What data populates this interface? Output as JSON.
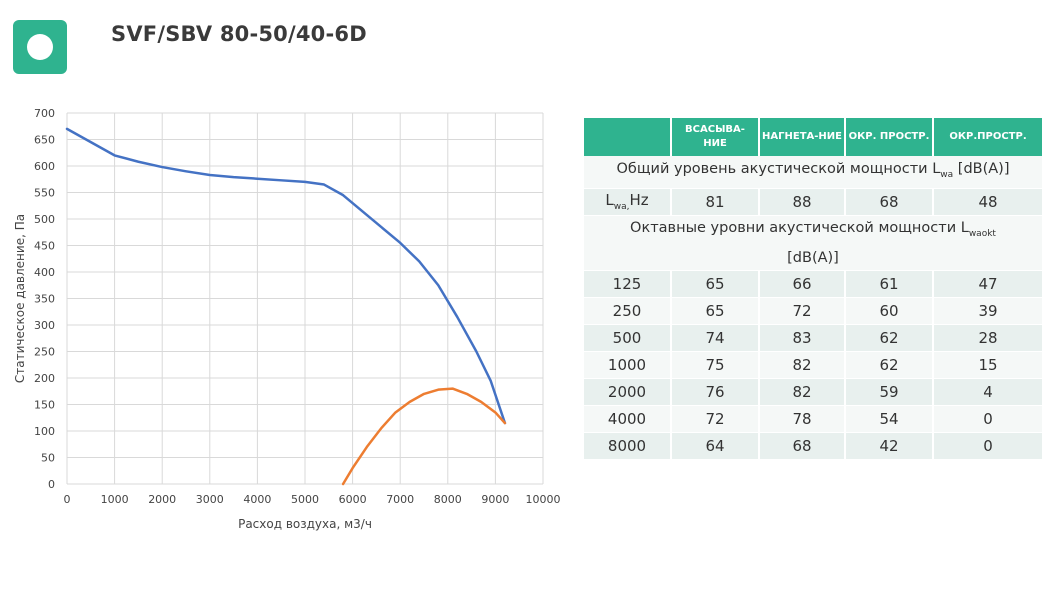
{
  "header": {
    "title": "SVF/SBV 80-50/40-6D"
  },
  "colors": {
    "brand": "#2fb38f",
    "series_pressure": "#4472c4",
    "series_efficiency": "#ed7d31"
  },
  "chart_data": {
    "type": "line",
    "xlabel": "Расход воздуха, м3/ч",
    "ylabel": "Статическое давление, Па",
    "xlim": [
      0,
      10000
    ],
    "ylim": [
      0,
      700
    ],
    "xticks": [
      0,
      1000,
      2000,
      3000,
      4000,
      5000,
      6000,
      7000,
      8000,
      9000,
      10000
    ],
    "yticks": [
      0,
      50,
      100,
      150,
      200,
      250,
      300,
      350,
      400,
      450,
      500,
      550,
      600,
      650,
      700
    ],
    "grid": true,
    "series": [
      {
        "color": "#4472c4",
        "x": [
          0,
          500,
          1000,
          1500,
          2000,
          2500,
          3000,
          3500,
          4000,
          4500,
          5000,
          5400,
          5800,
          6200,
          6600,
          7000,
          7400,
          7800,
          8200,
          8600,
          8900,
          9200
        ],
        "y": [
          670,
          645,
          620,
          608,
          598,
          590,
          583,
          579,
          576,
          573,
          570,
          565,
          545,
          515,
          485,
          455,
          420,
          375,
          315,
          250,
          195,
          115
        ]
      },
      {
        "color": "#ed7d31",
        "x": [
          5800,
          6000,
          6300,
          6600,
          6900,
          7200,
          7500,
          7800,
          8100,
          8400,
          8700,
          9000,
          9200
        ],
        "y": [
          0,
          30,
          70,
          105,
          135,
          155,
          170,
          178,
          180,
          170,
          155,
          135,
          115
        ]
      }
    ]
  },
  "sound_table": {
    "headers": [
      "ВСАСЫВА-НИЕ",
      "НАГНЕТА-НИЕ",
      "ОКР. ПРОСТР.",
      "ОКР.ПРОСТР."
    ],
    "total_label": "Общий уровень акустической мощности L",
    "total_sub": "wa",
    "total_unit": " [dB(A)]",
    "lwa_label": "L",
    "lwa_sub": "wa,",
    "lwa_unit": "Hz",
    "lwa_values": [
      "81",
      "88",
      "68",
      "48"
    ],
    "octave_label": "Октавные уровни акустической мощности L",
    "octave_sub": "waokt",
    "octave_unit": "[dB(A)]",
    "rows": [
      {
        "hz": "125",
        "v": [
          "65",
          "66",
          "61",
          "47"
        ]
      },
      {
        "hz": "250",
        "v": [
          "65",
          "72",
          "60",
          "39"
        ]
      },
      {
        "hz": "500",
        "v": [
          "74",
          "83",
          "62",
          "28"
        ]
      },
      {
        "hz": "1000",
        "v": [
          "75",
          "82",
          "62",
          "15"
        ]
      },
      {
        "hz": "2000",
        "v": [
          "76",
          "82",
          "59",
          "4"
        ]
      },
      {
        "hz": "4000",
        "v": [
          "72",
          "78",
          "54",
          "0"
        ]
      },
      {
        "hz": "8000",
        "v": [
          "64",
          "68",
          "42",
          "0"
        ]
      }
    ]
  }
}
